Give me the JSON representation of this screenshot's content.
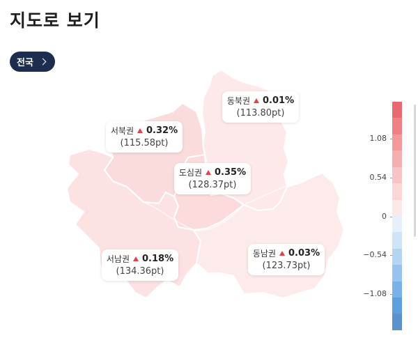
{
  "header": {
    "title": "지도로 보기"
  },
  "region_selector": {
    "label": "전국"
  },
  "districts": [
    {
      "name": "동북권",
      "change": "0.01%",
      "index": "(113.80pt)"
    },
    {
      "name": "서북권",
      "change": "0.32%",
      "index": "(115.58pt)"
    },
    {
      "name": "도심권",
      "change": "0.35%",
      "index": "(128.37pt)"
    },
    {
      "name": "서남권",
      "change": "0.18%",
      "index": "(134.36pt)"
    },
    {
      "name": "동남권",
      "change": "0.03%",
      "index": "(123.73pt)"
    }
  ],
  "legend": {
    "ticks": [
      "1.08",
      "0.54",
      "0",
      "−0.54",
      "−1.08"
    ],
    "colors": [
      "#e86a70",
      "#ee8185",
      "#f2999c",
      "#f5aeb0",
      "#f8c3c4",
      "#fbd6d7",
      "#fde8e8",
      "#e6f0fa",
      "#cfe4f6",
      "#b4d5f2",
      "#97c4ee",
      "#79b2e9",
      "#5e9fe0",
      "#5a92cc"
    ]
  },
  "map_fill": {
    "northeast": "#fde9ea",
    "northwest": "#fbdcdd",
    "central": "#fbdbdc",
    "southwest": "#fce2e3",
    "southeast": "#fdebec"
  }
}
